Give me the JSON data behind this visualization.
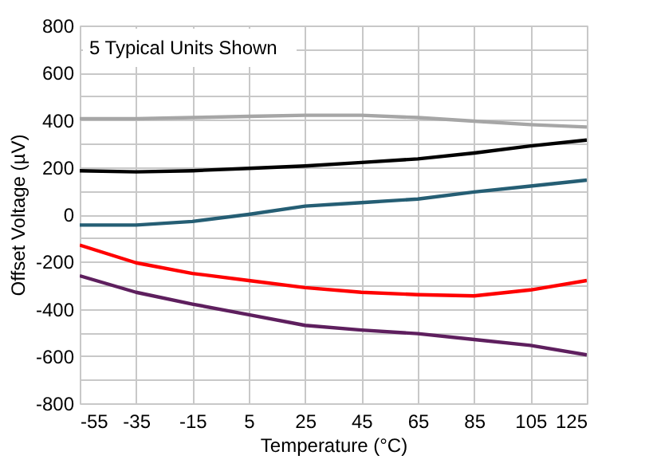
{
  "chart_data": {
    "type": "line",
    "xlabel": "Temperature (°C)",
    "ylabel": "Offset Voltage (µV)",
    "x": [
      -55,
      -35,
      -15,
      5,
      25,
      45,
      65,
      85,
      105,
      125
    ],
    "series": [
      {
        "color": "#a6a6a6",
        "values": [
          405,
          405,
          410,
          415,
          420,
          420,
          410,
          395,
          380,
          370
        ]
      },
      {
        "color": "#000000",
        "values": [
          185,
          180,
          185,
          195,
          205,
          220,
          235,
          260,
          290,
          315
        ]
      },
      {
        "color": "#255e74",
        "values": [
          -45,
          -45,
          -30,
          0,
          35,
          50,
          65,
          95,
          120,
          145
        ]
      },
      {
        "color": "#ff0000",
        "values": [
          -130,
          -205,
          -250,
          -280,
          -310,
          -330,
          -340,
          -345,
          -320,
          -280
        ]
      },
      {
        "color": "#5e1f5e",
        "values": [
          -260,
          -330,
          -380,
          -425,
          -470,
          -490,
          -505,
          -530,
          -555,
          -595
        ]
      }
    ],
    "xlim": [
      -55,
      125
    ],
    "xticks": [
      -55,
      -35,
      -15,
      5,
      25,
      45,
      65,
      85,
      105,
      125
    ],
    "ylim": [
      -800,
      800
    ],
    "yticks": [
      -800,
      {
        "value": -700,
        "label": null
      },
      -600,
      {
        "value": -500,
        "label": null
      },
      -400,
      {
        "value": -300,
        "label": null
      },
      -200,
      {
        "value": -100,
        "label": null
      },
      0,
      {
        "value": 100,
        "label": null
      },
      200,
      {
        "value": 300,
        "label": null
      },
      400,
      {
        "value": 500,
        "label": null
      },
      600,
      {
        "value": 700,
        "label": null
      },
      800
    ],
    "grid": true,
    "legend": false,
    "marker": "none",
    "line_style": "solid",
    "annotations": [
      "5 Typical Units Shown"
    ]
  }
}
